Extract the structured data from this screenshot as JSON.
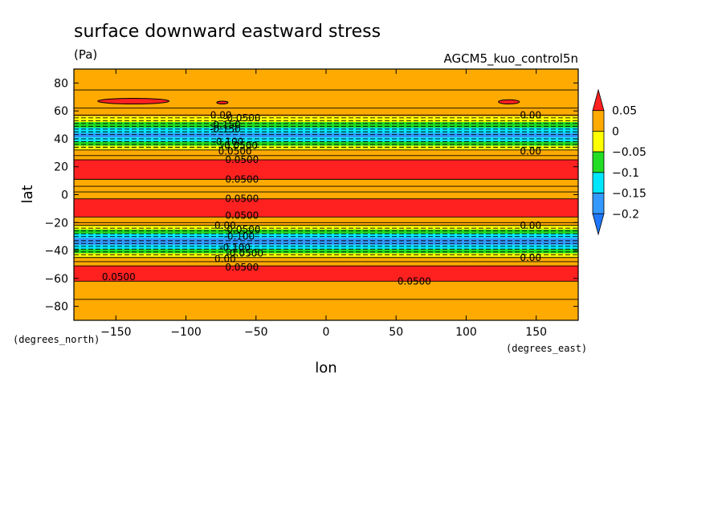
{
  "chart_data": {
    "type": "heatmap",
    "title": "surface downward eastward stress",
    "units": "(Pa)",
    "model": "AGCM5_kuo_control5n",
    "xlabel": "lon",
    "ylabel": "lat",
    "xunit": "(degrees_east)",
    "yunit": "(degrees_north)",
    "xlim": [
      -180,
      180
    ],
    "ylim": [
      -90,
      90
    ],
    "xticks": [
      -150,
      -100,
      -50,
      0,
      50,
      100,
      150
    ],
    "yticks": [
      80,
      60,
      40,
      20,
      0,
      -20,
      -40,
      -60,
      -80
    ],
    "colorbar": {
      "labels": [
        "0.05",
        "0",
        "−0.05",
        "−0.1",
        "−0.15",
        "−0.2"
      ],
      "label_values": [
        0.05,
        0,
        -0.05,
        -0.1,
        -0.15,
        -0.2
      ],
      "bins": [
        {
          "lo": -0.25,
          "hi": -0.2,
          "color": "#1e78ff"
        },
        {
          "lo": -0.2,
          "hi": -0.15,
          "color": "#3399ff"
        },
        {
          "lo": -0.15,
          "hi": -0.1,
          "color": "#00e6ff"
        },
        {
          "lo": -0.1,
          "hi": -0.05,
          "color": "#22dd22"
        },
        {
          "lo": -0.05,
          "hi": 0,
          "color": "#ffff00"
        },
        {
          "lo": 0,
          "hi": 0.05,
          "color": "#ffaa00"
        },
        {
          "lo": 0.05,
          "hi": 0.1,
          "color": "#ff2020"
        }
      ]
    },
    "bands": [
      {
        "lat_from": 90,
        "lat_to": 56,
        "value": 0.02
      },
      {
        "lat_from": 56,
        "lat_to": 52,
        "value": -0.03
      },
      {
        "lat_from": 52,
        "lat_to": 48,
        "value": -0.08
      },
      {
        "lat_from": 48,
        "lat_to": 44,
        "value": -0.13
      },
      {
        "lat_from": 44,
        "lat_to": 41,
        "value": -0.17
      },
      {
        "lat_from": 41,
        "lat_to": 38,
        "value": -0.13
      },
      {
        "lat_from": 38,
        "lat_to": 35,
        "value": -0.08
      },
      {
        "lat_from": 35,
        "lat_to": 32,
        "value": -0.03
      },
      {
        "lat_from": 32,
        "lat_to": 25,
        "value": 0.02
      },
      {
        "lat_from": 25,
        "lat_to": 11,
        "value": 0.07
      },
      {
        "lat_from": 11,
        "lat_to": -3,
        "value": 0.02
      },
      {
        "lat_from": -3,
        "lat_to": -16,
        "value": 0.07
      },
      {
        "lat_from": -16,
        "lat_to": -22,
        "value": 0.02
      },
      {
        "lat_from": -22,
        "lat_to": -25,
        "value": -0.03
      },
      {
        "lat_from": -25,
        "lat_to": -28,
        "value": -0.08
      },
      {
        "lat_from": -28,
        "lat_to": -31,
        "value": -0.12
      },
      {
        "lat_from": -31,
        "lat_to": -36,
        "value": -0.16
      },
      {
        "lat_from": -36,
        "lat_to": -39,
        "value": -0.12
      },
      {
        "lat_from": -39,
        "lat_to": -42,
        "value": -0.06
      },
      {
        "lat_from": -42,
        "lat_to": -45,
        "value": -0.02
      },
      {
        "lat_from": -45,
        "lat_to": -51,
        "value": 0.02
      },
      {
        "lat_from": -51,
        "lat_to": -62,
        "value": 0.07
      },
      {
        "lat_from": -62,
        "lat_to": -90,
        "value": 0.02
      }
    ],
    "patches": [
      {
        "lon_from": -163,
        "lon_to": -112,
        "lat_from": 69,
        "lat_to": 65,
        "value": 0.07
      },
      {
        "lon_from": -78,
        "lon_to": -70,
        "lat_from": 67,
        "lat_to": 65,
        "value": 0.07
      },
      {
        "lon_from": 123,
        "lon_to": 138,
        "lat_from": 68,
        "lat_to": 65,
        "value": 0.07
      }
    ],
    "contour_lines": [
      {
        "lat": 75,
        "style": "solid"
      },
      {
        "lat": 62,
        "style": "solid"
      },
      {
        "lat": 57,
        "style": "solid"
      },
      {
        "lat": 55,
        "style": "dashed"
      },
      {
        "lat": 53,
        "style": "dashed"
      },
      {
        "lat": 51,
        "style": "dashed"
      },
      {
        "lat": 49,
        "style": "dashed"
      },
      {
        "lat": 47,
        "style": "dashed"
      },
      {
        "lat": 45,
        "style": "dashed"
      },
      {
        "lat": 43,
        "style": "dashed"
      },
      {
        "lat": 40,
        "style": "dashed"
      },
      {
        "lat": 38,
        "style": "dashed"
      },
      {
        "lat": 36,
        "style": "dashed"
      },
      {
        "lat": 34,
        "style": "dashed"
      },
      {
        "lat": 32,
        "style": "solid"
      },
      {
        "lat": 28,
        "style": "solid"
      },
      {
        "lat": 25,
        "style": "solid"
      },
      {
        "lat": 11,
        "style": "solid"
      },
      {
        "lat": 6,
        "style": "solid"
      },
      {
        "lat": 2,
        "style": "solid"
      },
      {
        "lat": -3,
        "style": "solid"
      },
      {
        "lat": -16,
        "style": "solid"
      },
      {
        "lat": -20,
        "style": "solid"
      },
      {
        "lat": -22,
        "style": "solid"
      },
      {
        "lat": -24,
        "style": "dashed"
      },
      {
        "lat": -26,
        "style": "dashed"
      },
      {
        "lat": -28,
        "style": "dashed"
      },
      {
        "lat": -30,
        "style": "dashed"
      },
      {
        "lat": -33,
        "style": "dashed"
      },
      {
        "lat": -35,
        "style": "dashed"
      },
      {
        "lat": -37,
        "style": "dashed"
      },
      {
        "lat": -39,
        "style": "dashed"
      },
      {
        "lat": -41,
        "style": "dashed"
      },
      {
        "lat": -43,
        "style": "dashed"
      },
      {
        "lat": -45,
        "style": "solid"
      },
      {
        "lat": -48,
        "style": "solid"
      },
      {
        "lat": -51,
        "style": "solid"
      },
      {
        "lat": -62,
        "style": "solid"
      },
      {
        "lat": -75,
        "style": "solid"
      }
    ],
    "contour_labels": [
      {
        "text": "0.00",
        "lon": -75,
        "lat": 57
      },
      {
        "text": "-0.0500",
        "lon": -60,
        "lat": 55
      },
      {
        "text": "-0.150",
        "lon": -72,
        "lat": 50
      },
      {
        "text": "-0.150",
        "lon": -72,
        "lat": 47
      },
      {
        "text": "-0.100",
        "lon": -70,
        "lat": 38
      },
      {
        "text": "-0.0500",
        "lon": -62,
        "lat": 35
      },
      {
        "text": "0.0500",
        "lon": -65,
        "lat": 31
      },
      {
        "text": "0.0500",
        "lon": -60,
        "lat": 25
      },
      {
        "text": "0.0500",
        "lon": -60,
        "lat": 11
      },
      {
        "text": "0.0500",
        "lon": -60,
        "lat": -3
      },
      {
        "text": "0.0500",
        "lon": -60,
        "lat": -15
      },
      {
        "text": "0.00",
        "lon": -72,
        "lat": -22
      },
      {
        "text": "-0.0500",
        "lon": -60,
        "lat": -25
      },
      {
        "text": "-0.100",
        "lon": -62,
        "lat": -30
      },
      {
        "text": "-0.100",
        "lon": -65,
        "lat": -38
      },
      {
        "text": "-0.0500",
        "lon": -58,
        "lat": -42
      },
      {
        "text": "0.00",
        "lon": -72,
        "lat": -46
      },
      {
        "text": "0.0500",
        "lon": -60,
        "lat": -52
      },
      {
        "text": "0.0500",
        "lon": -148,
        "lat": -59
      },
      {
        "text": "0.0500",
        "lon": 63,
        "lat": -62
      },
      {
        "text": "0.00",
        "lon": 146,
        "lat": 57
      },
      {
        "text": "0.00",
        "lon": 146,
        "lat": 31
      },
      {
        "text": "0.00",
        "lon": 146,
        "lat": -22
      },
      {
        "text": "0.00",
        "lon": 146,
        "lat": -45
      }
    ]
  }
}
